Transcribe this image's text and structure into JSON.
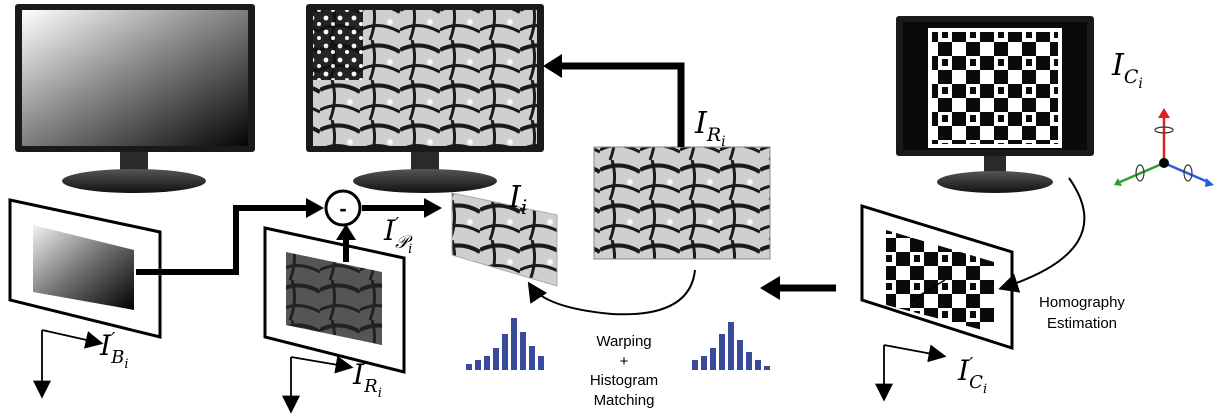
{
  "labels": {
    "I_Ri_top": {
      "base": "I",
      "sub": "R",
      "subsub": "i"
    },
    "I_Ci": {
      "base": "I",
      "sub": "C",
      "subsub": "i"
    },
    "I_i": {
      "base": "I",
      "sub": "i"
    },
    "I_Pi": {
      "base": "I",
      "prime": "′",
      "sub": "𝒫",
      "subsub": "i"
    },
    "I_Bi": {
      "base": "I",
      "prime": "′",
      "sub": "B",
      "subsub": "i"
    },
    "I_Ri_prime": {
      "base": "I",
      "prime": "′",
      "sub": "R",
      "subsub": "i"
    },
    "I_Ci_prime": {
      "base": "I",
      "prime": "′",
      "sub": "C",
      "subsub": "i"
    }
  },
  "minus_symbol": "-",
  "steps": {
    "homography": [
      "Homography",
      "Estimation"
    ],
    "warping": [
      "Warping",
      "+",
      "Histogram",
      "Matching"
    ]
  },
  "histogram_left": [
    6,
    10,
    14,
    22,
    36,
    52,
    38,
    24,
    14
  ],
  "histogram_right": [
    10,
    14,
    22,
    36,
    48,
    30,
    18,
    10,
    4
  ],
  "colors": {
    "histogram": "#3a4a9a",
    "axis_x": "#2aa02a",
    "axis_y": "#e02020",
    "axis_z": "#2a5ae0"
  }
}
